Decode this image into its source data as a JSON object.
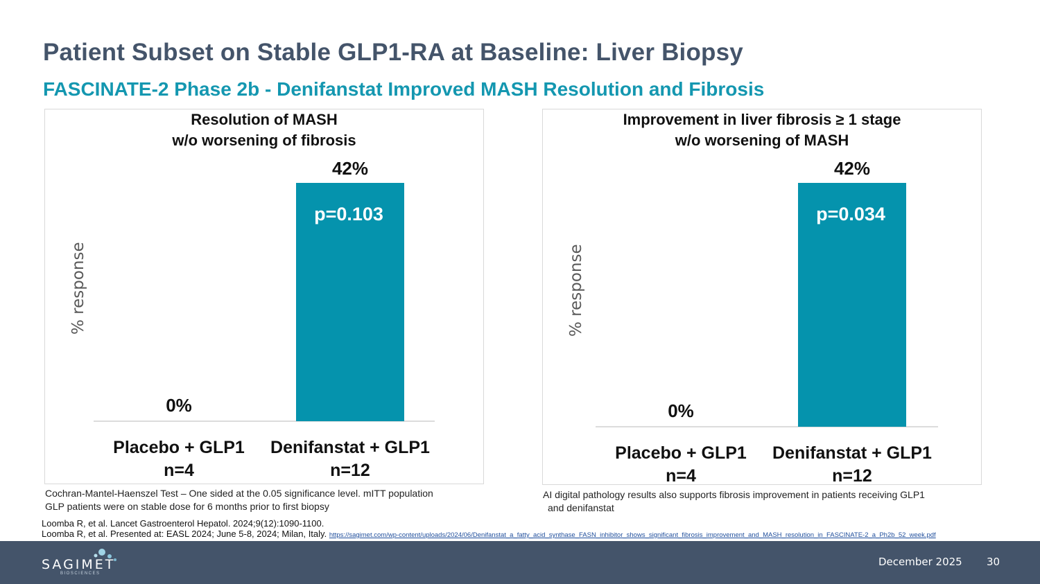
{
  "slide": {
    "title": "Patient Subset on Stable GLP1-RA at Baseline: Liver Biopsy",
    "subtitle": "FASCINATE-2 Phase 2b - Denifanstat Improved MASH Resolution and Fibrosis"
  },
  "chart_data": [
    {
      "type": "bar",
      "title_lines": [
        "Resolution of MASH",
        "w/o worsening of fibrosis"
      ],
      "ylabel": "% response",
      "ylim": [
        0,
        42
      ],
      "categories": [
        "Placebo + GLP1",
        "Denifanstat + GLP1"
      ],
      "n_labels": [
        "n=4",
        "n=12"
      ],
      "values": [
        0,
        42
      ],
      "value_labels": [
        "0%",
        "42%"
      ],
      "annotation": "p=0.103",
      "bar_color": "#0593ad",
      "grid": false
    },
    {
      "type": "bar",
      "title_lines": [
        "Improvement in liver fibrosis ≥ 1 stage",
        "w/o worsening of MASH"
      ],
      "ylabel": "% response",
      "ylim": [
        0,
        42
      ],
      "categories": [
        "Placebo + GLP1",
        "Denifanstat + GLP1"
      ],
      "n_labels": [
        "n=4",
        "n=12"
      ],
      "values": [
        0,
        42
      ],
      "value_labels": [
        "0%",
        "42%"
      ],
      "annotation": "p=0.034",
      "bar_color": "#0593ad",
      "grid": false
    }
  ],
  "notes": {
    "left": [
      "Cochran-Mantel-Haenszel Test – One sided at the 0.05 significance level. mITT population",
      "GLP patients were on stable dose for 6 months prior to first biopsy"
    ],
    "right": [
      "AI digital pathology results also supports fibrosis improvement in patients receiving GLP1",
      "and denifanstat"
    ]
  },
  "references": {
    "ref1": "Loomba R, et al. Lancet Gastroenterol Hepatol. 2024;9(12):1090-1100.",
    "ref2": "Loomba R, et al. Presented at: EASL 2024; June 5-8, 2024; Milan, Italy.",
    "ref2_url": "https://sagimet.com/wp-content/uploads/2024/06/Denifanstat_a_fatty_acid_synthase_FASN_inhibitor_shows_significant_fibrosis_improvement_and_MASH_resolution_in_FASCINATE-2_a_Ph2b_52_week.pdf"
  },
  "footer": {
    "logo_text": "SAGIMET",
    "logo_subtext": "BIOSCIENCES",
    "logo_icon": "dots-logo-icon",
    "date": "December 2025",
    "page": "30"
  }
}
